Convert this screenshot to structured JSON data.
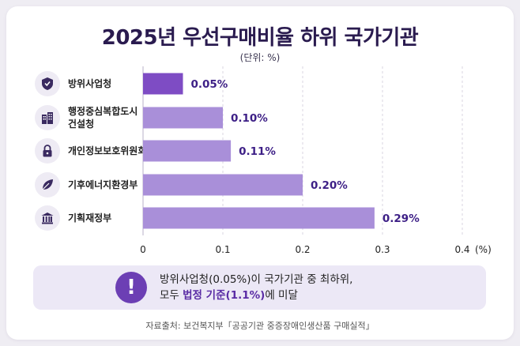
{
  "title": "2025년 우선구매비율 하위 국가기관",
  "unit_note": "(단위: %)",
  "chart_data": {
    "type": "bar",
    "orientation": "horizontal",
    "title": "2025년 우선구매비율 하위 국가기관",
    "unit": "(%)",
    "categories": [
      "방위사업청",
      "행정중심복합도시 건설청",
      "개인정보보호위원회",
      "기후에너지환경부",
      "기획재정부"
    ],
    "category_lines": [
      [
        "방위사업청"
      ],
      [
        "행정중심복합도시",
        "건설청"
      ],
      [
        "개인정보보호위원회"
      ],
      [
        "기후에너지환경부"
      ],
      [
        "기획재정부"
      ]
    ],
    "icons": [
      "shield-icon",
      "buildings-icon",
      "lock-icon",
      "leaf-icon",
      "bank-icon"
    ],
    "values": [
      0.05,
      0.1,
      0.11,
      0.2,
      0.29
    ],
    "data_labels": [
      "0.05%",
      "0.10%",
      "0.11%",
      "0.20%",
      "0.29%"
    ],
    "xlim": [
      0,
      0.4
    ],
    "ticks": [
      0,
      0.1,
      0.2,
      0.3,
      0.4
    ],
    "tick_labels": [
      "0",
      "0.1",
      "0.2",
      "0.3",
      "0.4"
    ],
    "grid": true,
    "colors": {
      "highlight": "#7e4cc4",
      "bar": "#a98fd9",
      "label": "#3d1f86",
      "grid": "#d8d4e2"
    }
  },
  "callout": {
    "icon": "exclamation-icon",
    "line1": "방위사업청(0.05%)이 국가기관 중 최하위,",
    "line2_prefix": "모두 ",
    "line2_highlight": "법정 기준(1.1%)",
    "line2_suffix": "에 미달"
  },
  "source": "자료출처: 보건복지부「공공기관 중증장애인생산품 구매실적」"
}
